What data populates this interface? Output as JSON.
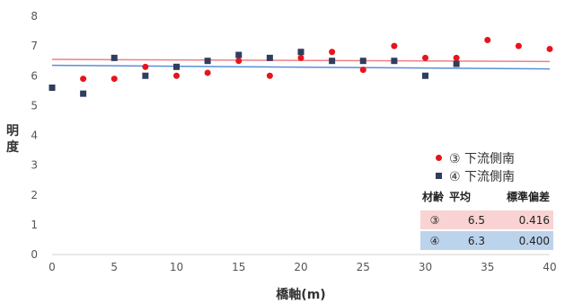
{
  "chart_data": {
    "type": "scatter",
    "xlabel": "橋軸(m)",
    "ylabel": "明度",
    "xlim": [
      0,
      40
    ],
    "ylim": [
      0,
      8
    ],
    "xticks": [
      0,
      5,
      10,
      15,
      20,
      25,
      30,
      35,
      40
    ],
    "yticks": [
      0,
      1,
      2,
      3,
      4,
      5,
      6,
      7,
      8
    ],
    "grid": false,
    "legend_position": "right",
    "series": [
      {
        "name": "③ 下流側南",
        "marker": "circle",
        "color": "#e8141b",
        "trend_color": "#f08080",
        "points": [
          [
            2.5,
            5.9
          ],
          [
            5,
            5.9
          ],
          [
            7.5,
            6.3
          ],
          [
            10,
            6.0
          ],
          [
            12.5,
            6.1
          ],
          [
            15,
            6.5
          ],
          [
            17.5,
            6.0
          ],
          [
            20,
            6.6
          ],
          [
            22.5,
            6.8
          ],
          [
            25,
            6.2
          ],
          [
            27.5,
            7.0
          ],
          [
            30,
            6.6
          ],
          [
            32.5,
            6.6
          ],
          [
            35,
            7.2
          ],
          [
            37.5,
            7.0
          ],
          [
            40,
            6.9
          ]
        ],
        "trend": [
          [
            0,
            6.55
          ],
          [
            40,
            6.48
          ]
        ]
      },
      {
        "name": "④ 下流側南",
        "marker": "square",
        "color": "#2f3e5c",
        "trend_color": "#5b8fd4",
        "points": [
          [
            0,
            5.6
          ],
          [
            2.5,
            5.4
          ],
          [
            5,
            6.6
          ],
          [
            7.5,
            6.0
          ],
          [
            10,
            6.3
          ],
          [
            12.5,
            6.5
          ],
          [
            15,
            6.7
          ],
          [
            17.5,
            6.6
          ],
          [
            20,
            6.8
          ],
          [
            22.5,
            6.5
          ],
          [
            25,
            6.5
          ],
          [
            27.5,
            6.5
          ],
          [
            30,
            6.0
          ],
          [
            32.5,
            6.4
          ]
        ],
        "trend": [
          [
            0,
            6.35
          ],
          [
            40,
            6.23
          ]
        ]
      }
    ],
    "stats_table": {
      "headers": [
        "材齢",
        "平均",
        "標準偏差"
      ],
      "rows": [
        {
          "label": "③",
          "mean": "6.5",
          "std": "0.416",
          "bg": "#f9d3d3"
        },
        {
          "label": "④",
          "mean": "6.3",
          "std": "0.400",
          "bg": "#bcd3ec"
        }
      ]
    }
  }
}
